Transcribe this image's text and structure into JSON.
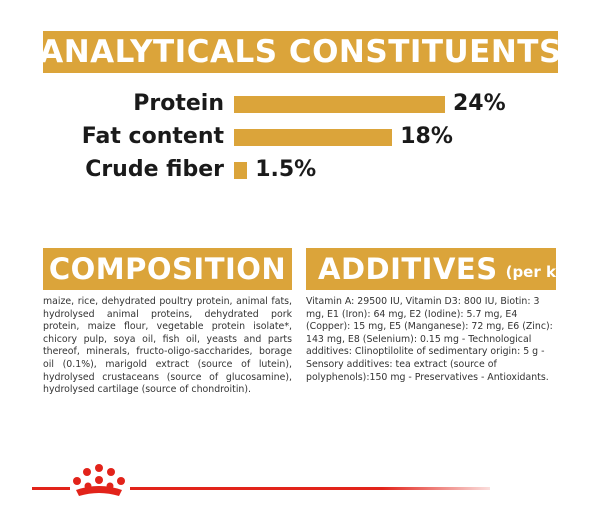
{
  "analytics": {
    "title": "ANALYTICALS CONSTITUENTS",
    "rows": [
      {
        "label": "Protein",
        "value_label": "24%",
        "value": 24
      },
      {
        "label": "Fat content",
        "value_label": "18%",
        "value": 18
      },
      {
        "label": "Crude fiber",
        "value_label": "1.5%",
        "value": 1.5
      }
    ]
  },
  "composition": {
    "title": "COMPOSITION",
    "text": "maize, rice, dehydrated poultry protein, animal fats, hydrolysed animal proteins, dehydrated pork protein, maize flour, vegetable protein isolate*, chicory pulp, soya oil, fish oil, yeasts and parts thereof, minerals, fructo-oligo-saccharides, borage oil (0.1%), marigold extract (source of lutein), hydrolysed crustaceans (source of glucosamine), hydrolysed cartilage (source of chondroitin)."
  },
  "additives": {
    "title": "ADDITIVES",
    "unit": "(per kg)",
    "text": "Vitamin A: 29500 IU, Vitamin D3: 800 IU, Biotin: 3 mg, E1 (Iron): 64 mg, E2 (Iodine): 5.7 mg, E4 (Copper): 15 mg, E5 (Manganese): 72 mg, E6 (Zinc): 143 mg, E8 (Selenium): 0.15 mg - Technological additives: Clinoptilolite of sedimentary origin: 5 g - Sensory additives: tea extract (source of polyphenols):150 mg - Preservatives - Antioxidants."
  },
  "colors": {
    "accent": "#dba43a",
    "brand_red": "#e2231a"
  },
  "footer": {
    "logo_icon": "crown-icon"
  }
}
